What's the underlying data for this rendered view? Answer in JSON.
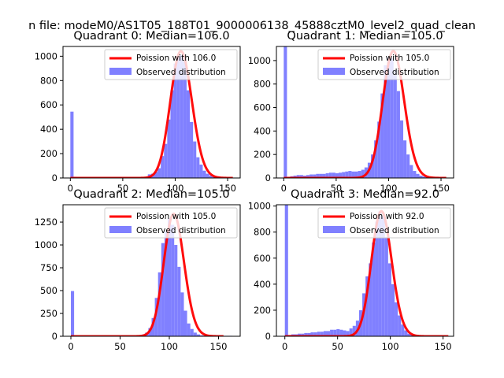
{
  "figure": {
    "suptitle": "n file: modeM0/AS1T05_188T01_9000006138_45888cztM0_level2_quad_clean"
  },
  "chart_data": [
    {
      "type": "bar",
      "title": "Quadrant 0: Median=106.0",
      "xlim": [
        -7,
        162
      ],
      "ylim": [
        0,
        1080
      ],
      "xticks": [
        0,
        50,
        100,
        150
      ],
      "yticks": [
        0,
        200,
        400,
        600,
        800,
        1000
      ],
      "legend": {
        "placement": "top-right",
        "entries": [
          "Poission with 106.0",
          "Observed distribution"
        ]
      },
      "observed_color": "#8080ff",
      "poisson_color": "#ff0000",
      "poisson_mean": 106.0,
      "poisson_peak": 1040,
      "bins": {
        "width": 3.08,
        "edges_start": 0,
        "counts": [
          545,
          10,
          5,
          5,
          0,
          0,
          5,
          5,
          5,
          5,
          5,
          5,
          5,
          5,
          5,
          5,
          5,
          5,
          5,
          5,
          5,
          5,
          5,
          5,
          30,
          35,
          50,
          80,
          180,
          280,
          480,
          720,
          940,
          1000,
          1010,
          960,
          720,
          460,
          300,
          170,
          110,
          60,
          35,
          20,
          12,
          10,
          8,
          5,
          5,
          5
        ]
      }
    },
    {
      "type": "bar",
      "title": "Quadrant 1: Median=105.0",
      "xlim": [
        -7,
        162
      ],
      "ylim": [
        0,
        1120
      ],
      "xticks": [
        0,
        50,
        100,
        150
      ],
      "yticks": [
        0,
        200,
        400,
        600,
        800,
        1000
      ],
      "legend": {
        "placement": "top-right",
        "entries": [
          "Poission with 105.0",
          "Observed distribution"
        ]
      },
      "observed_color": "#8080ff",
      "poisson_color": "#ff0000",
      "poisson_mean": 105.0,
      "poisson_peak": 1080,
      "bins": {
        "width": 3.08,
        "edges_start": 0,
        "counts": [
          1120,
          10,
          15,
          20,
          25,
          25,
          20,
          25,
          30,
          30,
          35,
          35,
          35,
          40,
          45,
          45,
          40,
          45,
          50,
          55,
          60,
          55,
          55,
          60,
          70,
          90,
          130,
          200,
          320,
          480,
          720,
          960,
          1030,
          1020,
          920,
          740,
          490,
          320,
          200,
          110,
          60,
          35,
          20,
          12,
          8,
          6,
          5,
          5,
          5,
          5
        ]
      }
    },
    {
      "type": "bar",
      "title": "Quadrant 2: Median=105.0",
      "xlim": [
        -8,
        172
      ],
      "ylim": [
        0,
        1440
      ],
      "xticks": [
        0,
        50,
        100,
        150
      ],
      "yticks": [
        0,
        250,
        500,
        750,
        1000,
        1250
      ],
      "legend": {
        "placement": "top-right",
        "entries": [
          "Poission with 105.0",
          "Observed distribution"
        ]
      },
      "observed_color": "#8080ff",
      "poisson_color": "#ff0000",
      "poisson_mean": 105.0,
      "poisson_peak": 1340,
      "bins": {
        "width": 3.28,
        "edges_start": 0,
        "counts": [
          495,
          8,
          5,
          5,
          0,
          0,
          5,
          5,
          5,
          5,
          5,
          5,
          5,
          5,
          5,
          5,
          5,
          5,
          5,
          5,
          5,
          10,
          20,
          40,
          90,
          200,
          420,
          700,
          1020,
          1160,
          1290,
          1220,
          1000,
          760,
          480,
          280,
          140,
          80,
          40,
          20,
          10,
          6,
          5,
          5,
          5,
          5,
          5,
          5,
          5,
          5
        ]
      }
    },
    {
      "type": "bar",
      "title": "Quadrant 3: Median=92.0",
      "xlim": [
        -8,
        160
      ],
      "ylim": [
        0,
        1010
      ],
      "xticks": [
        0,
        50,
        100,
        150
      ],
      "yticks": [
        0,
        200,
        400,
        600,
        800,
        1000
      ],
      "legend": {
        "placement": "top-right",
        "entries": [
          "Poission with 92.0",
          "Observed distribution"
        ]
      },
      "observed_color": "#8080ff",
      "poisson_color": "#ff0000",
      "poisson_mean": 92.0,
      "poisson_peak": 960,
      "bins": {
        "width": 3.06,
        "edges_start": 0,
        "counts": [
          1010,
          10,
          15,
          15,
          20,
          20,
          25,
          25,
          30,
          30,
          35,
          35,
          40,
          40,
          50,
          50,
          55,
          50,
          45,
          40,
          60,
          80,
          120,
          200,
          330,
          460,
          560,
          720,
          880,
          960,
          920,
          760,
          560,
          400,
          260,
          160,
          90,
          45,
          20,
          10,
          5,
          5,
          5,
          5,
          5,
          5,
          5,
          5,
          5,
          5
        ]
      }
    }
  ]
}
